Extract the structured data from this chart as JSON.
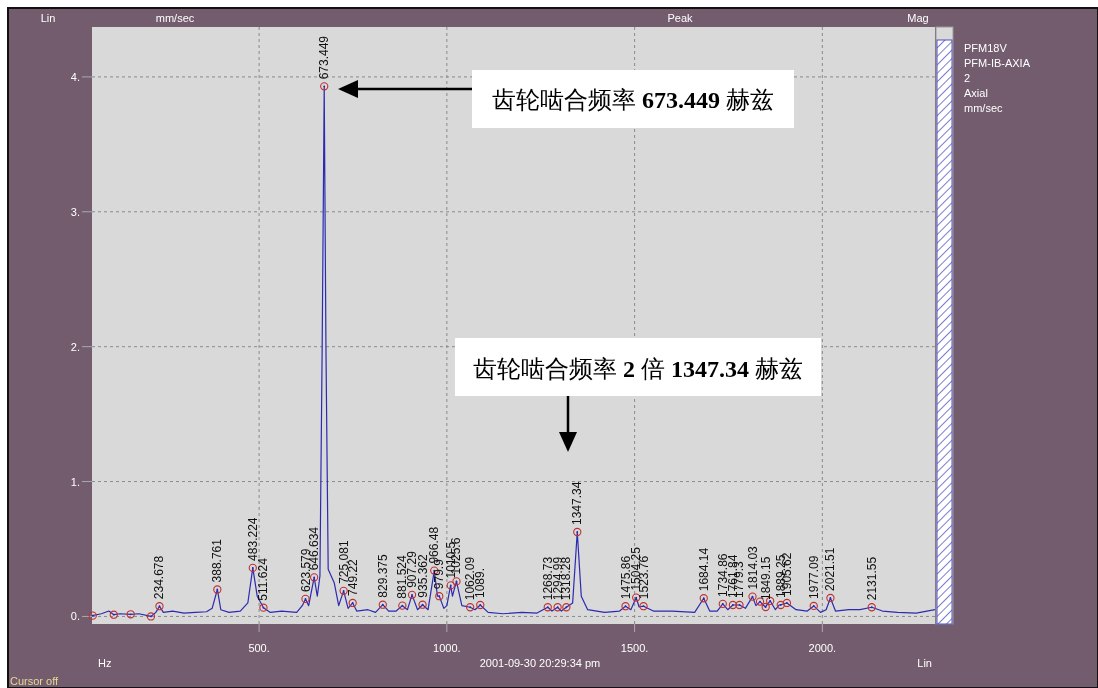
{
  "chart_data": {
    "type": "line",
    "xlabel": "Hz",
    "ylabel": "mm/sec",
    "xlim": [
      55,
      2300
    ],
    "ylim": [
      -0.056,
      4.37
    ],
    "xticks": [
      {
        "value": 500,
        "label": "500."
      },
      {
        "value": 1000,
        "label": "1000."
      },
      {
        "value": 1500,
        "label": "1500."
      },
      {
        "value": 2000,
        "label": "2000."
      }
    ],
    "yticks": [
      {
        "value": 0,
        "label": "0."
      },
      {
        "value": 1,
        "label": "1."
      },
      {
        "value": 2,
        "label": "2."
      },
      {
        "value": 3,
        "label": "3."
      },
      {
        "value": 4,
        "label": "4."
      }
    ],
    "grid": true,
    "series": [
      {
        "color": "#2b2bb0",
        "marker": "none",
        "x": [
          55,
          80,
          100,
          113,
          130,
          158,
          180,
          212,
          225,
          234.7,
          245,
          270,
          300,
          330,
          360,
          375,
          388.8,
          398,
          420,
          450,
          470,
          483.2,
          495,
          511.6,
          530,
          560,
          600,
          615,
          623.6,
          632,
          646.6,
          655,
          662,
          668,
          673.4,
          678,
          684,
          700,
          712,
          725.1,
          737,
          749.2,
          760,
          790,
          810,
          829.4,
          845,
          865,
          881.5,
          895,
          907.3,
          922,
          935.4,
          950,
          966.5,
          975,
          979.9,
          992,
          1000,
          1010,
          1015,
          1025.6,
          1040,
          1062.1,
          1075,
          1089,
          1110,
          1150,
          1200,
          1240,
          1268.7,
          1280,
          1295,
          1305,
          1318.3,
          1335,
          1347.3,
          1358,
          1375,
          1420,
          1460,
          1475.9,
          1490,
          1504.3,
          1512,
          1523.8,
          1550,
          1600,
          1660,
          1684.1,
          1700,
          1720,
          1734.9,
          1748,
          1761.8,
          1779.3,
          1795,
          1814,
          1823,
          1834,
          1848,
          1861,
          1875,
          1885.5,
          1905.6,
          1930,
          1960,
          1977.1,
          1995,
          2010,
          2021.5,
          2035,
          2070,
          2100,
          2131.6,
          2160,
          2200,
          2250,
          2300
        ],
        "values": [
          0.006,
          0.02,
          0.04,
          0.013,
          0.02,
          0.016,
          0.02,
          0.0,
          0.03,
          0.076,
          0.03,
          0.04,
          0.025,
          0.03,
          0.035,
          0.06,
          0.2,
          0.05,
          0.03,
          0.04,
          0.1,
          0.36,
          0.15,
          0.065,
          0.03,
          0.04,
          0.03,
          0.08,
          0.13,
          0.08,
          0.29,
          0.15,
          0.3,
          2.0,
          3.93,
          2.0,
          0.35,
          0.25,
          0.08,
          0.19,
          0.06,
          0.1,
          0.04,
          0.05,
          0.03,
          0.087,
          0.04,
          0.04,
          0.08,
          0.05,
          0.16,
          0.05,
          0.087,
          0.05,
          0.34,
          0.15,
          0.15,
          0.06,
          0.08,
          0.23,
          0.15,
          0.26,
          0.08,
          0.068,
          0.05,
          0.085,
          0.03,
          0.02,
          0.03,
          0.025,
          0.068,
          0.04,
          0.068,
          0.04,
          0.068,
          0.1,
          0.626,
          0.15,
          0.05,
          0.03,
          0.04,
          0.076,
          0.05,
          0.14,
          0.07,
          0.076,
          0.04,
          0.04,
          0.03,
          0.135,
          0.04,
          0.04,
          0.093,
          0.05,
          0.085,
          0.085,
          0.06,
          0.147,
          0.08,
          0.11,
          0.07,
          0.115,
          0.05,
          0.085,
          0.1,
          0.05,
          0.04,
          0.078,
          0.03,
          0.05,
          0.137,
          0.04,
          0.05,
          0.05,
          0.068,
          0.04,
          0.03,
          0.025,
          0.05
        ]
      },
      {
        "type": "scatter",
        "color": "#c03030",
        "marker": "circle",
        "x": [
          57,
          113,
          158,
          212,
          234.678,
          388.761,
          483.224,
          511.624,
          623.579,
          646.634,
          673.449,
          725.081,
          749.22,
          829.375,
          881.524,
          907.29,
          935.362,
          966.48,
          979.9,
          1010.5,
          1025.6,
          1062.09,
          1089,
          1268.73,
          1294.99,
          1318.28,
          1347.34,
          1475.86,
          1504.25,
          1523.76,
          1684.14,
          1734.86,
          1761.84,
          1779.3,
          1814.03,
          1834,
          1849.15,
          1861,
          1889.25,
          1905.62,
          1977.09,
          2021.51,
          2131.55
        ],
        "values": [
          0.006,
          0.013,
          0.016,
          0.0,
          0.076,
          0.2,
          0.36,
          0.065,
          0.13,
          0.29,
          3.93,
          0.19,
          0.1,
          0.087,
          0.08,
          0.16,
          0.087,
          0.34,
          0.15,
          0.23,
          0.26,
          0.068,
          0.085,
          0.068,
          0.068,
          0.068,
          0.626,
          0.076,
          0.14,
          0.076,
          0.135,
          0.093,
          0.085,
          0.085,
          0.147,
          0.11,
          0.07,
          0.115,
          0.085,
          0.1,
          0.078,
          0.137,
          0.068
        ]
      }
    ],
    "annotations": [
      "齿轮啮合频率 673.449 赫兹",
      "齿轮啮合频率 2 倍 1347.34 赫兹",
      {
        "text": "234.678",
        "x": 234.678,
        "y": 0.076
      },
      {
        "text": "388.761",
        "x": 388.761,
        "y": 0.2
      },
      {
        "text": "483.224",
        "x": 483.224,
        "y": 0.36
      },
      {
        "text": "511.624",
        "x": 511.624,
        "y": 0.065
      },
      {
        "text": "623.579",
        "x": 623.579,
        "y": 0.13
      },
      {
        "text": "646.634",
        "x": 646.634,
        "y": 0.29
      },
      {
        "text": "673.449",
        "x": 673.449,
        "y": 3.93
      },
      {
        "text": "725.081",
        "x": 725.081,
        "y": 0.19
      },
      {
        "text": "749.22",
        "x": 749.22,
        "y": 0.1
      },
      {
        "text": "829.375",
        "x": 829.375,
        "y": 0.087
      },
      {
        "text": "881.524",
        "x": 881.524,
        "y": 0.08
      },
      {
        "text": "907.29",
        "x": 907.29,
        "y": 0.16
      },
      {
        "text": "935.362",
        "x": 935.362,
        "y": 0.087
      },
      {
        "text": "966.48",
        "x": 966.48,
        "y": 0.34
      },
      {
        "text": "979.9",
        "x": 979.9,
        "y": 0.15
      },
      {
        "text": "1010.5",
        "x": 1010.5,
        "y": 0.23
      },
      {
        "text": "1025.6",
        "x": 1025.6,
        "y": 0.26
      },
      {
        "text": "1062.09",
        "x": 1062.09,
        "y": 0.068
      },
      {
        "text": "1089.",
        "x": 1089,
        "y": 0.085
      },
      {
        "text": "1268.73",
        "x": 1268.73,
        "y": 0.068
      },
      {
        "text": "1294.99",
        "x": 1294.99,
        "y": 0.068
      },
      {
        "text": "1318.28",
        "x": 1318.28,
        "y": 0.068
      },
      {
        "text": "1347.34",
        "x": 1347.34,
        "y": 0.626
      },
      {
        "text": "1475.86",
        "x": 1475.86,
        "y": 0.076
      },
      {
        "text": "1504.25",
        "x": 1504.25,
        "y": 0.14
      },
      {
        "text": "1523.76",
        "x": 1523.76,
        "y": 0.076
      },
      {
        "text": "1684.14",
        "x": 1684.14,
        "y": 0.135
      },
      {
        "text": "1734.86",
        "x": 1734.86,
        "y": 0.093
      },
      {
        "text": "1761.84",
        "x": 1761.84,
        "y": 0.085
      },
      {
        "text": "1779.3",
        "x": 1779.3,
        "y": 0.085
      },
      {
        "text": "1814.03",
        "x": 1814.03,
        "y": 0.147
      },
      {
        "text": "1849.15",
        "x": 1849.15,
        "y": 0.07
      },
      {
        "text": "1889.25",
        "x": 1889.25,
        "y": 0.085
      },
      {
        "text": "1905.62",
        "x": 1905.62,
        "y": 0.1
      },
      {
        "text": "1977.09",
        "x": 1977.09,
        "y": 0.078
      },
      {
        "text": "2021.51",
        "x": 2021.51,
        "y": 0.137
      },
      {
        "text": "2131.55",
        "x": 2131.55,
        "y": 0.068
      },
      "Lin",
      "Peak",
      "Mag",
      "2001-09-30 20:29:34 pm",
      "Lin",
      "Cursor off",
      "PFM18V",
      "PFM-IB-AXIA",
      "2",
      "Axial",
      "mm/sec"
    ]
  }
}
